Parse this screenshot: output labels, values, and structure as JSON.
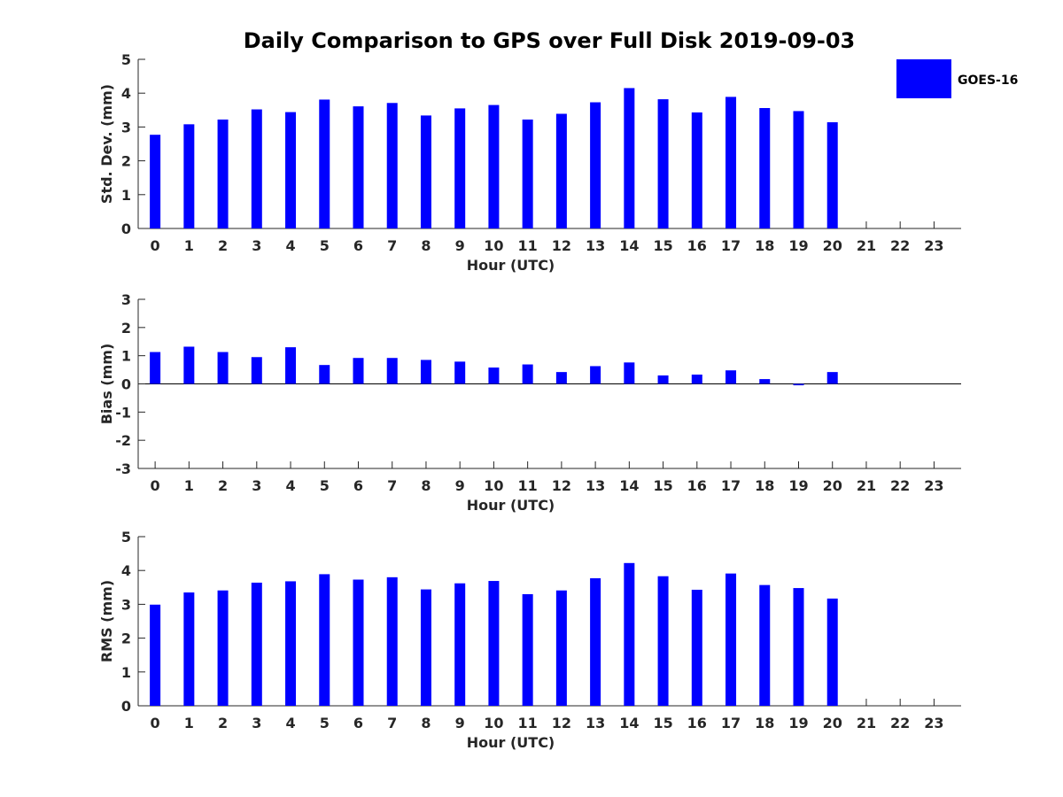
{
  "title": "Daily Comparison to GPS over Full Disk 2019-09-03",
  "legend": {
    "label": "GOES-16",
    "color": "#0000ff",
    "placement": "top-right"
  },
  "chart_data": [
    {
      "type": "bar",
      "xlabel": "Hour (UTC)",
      "ylabel": "Std. Dev. (mm)",
      "ylim": [
        0,
        5
      ],
      "yticks": [
        0,
        1,
        2,
        3,
        4,
        5
      ],
      "categories": [
        "0",
        "1",
        "2",
        "3",
        "4",
        "5",
        "6",
        "7",
        "8",
        "9",
        "10",
        "11",
        "12",
        "13",
        "14",
        "15",
        "16",
        "17",
        "18",
        "19",
        "20",
        "21",
        "22",
        "23"
      ],
      "series": [
        {
          "name": "GOES-16",
          "color": "#0000ff",
          "values": [
            2.77,
            3.08,
            3.22,
            3.52,
            3.44,
            3.81,
            3.61,
            3.71,
            3.34,
            3.55,
            3.65,
            3.22,
            3.39,
            3.73,
            4.15,
            3.82,
            3.43,
            3.89,
            3.56,
            3.47,
            3.14,
            null,
            null,
            null
          ]
        }
      ]
    },
    {
      "type": "bar",
      "xlabel": "Hour (UTC)",
      "ylabel": "Bias (mm)",
      "ylim": [
        -3,
        3
      ],
      "yticks": [
        -3,
        -2,
        -1,
        0,
        1,
        2,
        3
      ],
      "categories": [
        "0",
        "1",
        "2",
        "3",
        "4",
        "5",
        "6",
        "7",
        "8",
        "9",
        "10",
        "11",
        "12",
        "13",
        "14",
        "15",
        "16",
        "17",
        "18",
        "19",
        "20",
        "21",
        "22",
        "23"
      ],
      "series": [
        {
          "name": "GOES-16",
          "color": "#0000ff",
          "values": [
            1.13,
            1.32,
            1.13,
            0.95,
            1.3,
            0.67,
            0.92,
            0.92,
            0.85,
            0.79,
            0.58,
            0.69,
            0.42,
            0.63,
            0.76,
            0.3,
            0.33,
            0.48,
            0.17,
            -0.05,
            0.42,
            null,
            null,
            null
          ]
        }
      ]
    },
    {
      "type": "bar",
      "xlabel": "Hour (UTC)",
      "ylabel": "RMS (mm)",
      "ylim": [
        0,
        5
      ],
      "yticks": [
        0,
        1,
        2,
        3,
        4,
        5
      ],
      "categories": [
        "0",
        "1",
        "2",
        "3",
        "4",
        "5",
        "6",
        "7",
        "8",
        "9",
        "10",
        "11",
        "12",
        "13",
        "14",
        "15",
        "16",
        "17",
        "18",
        "19",
        "20",
        "21",
        "22",
        "23"
      ],
      "series": [
        {
          "name": "GOES-16",
          "color": "#0000ff",
          "values": [
            2.99,
            3.35,
            3.41,
            3.64,
            3.68,
            3.89,
            3.73,
            3.8,
            3.44,
            3.62,
            3.69,
            3.3,
            3.41,
            3.77,
            4.22,
            3.83,
            3.43,
            3.91,
            3.57,
            3.48,
            3.17,
            null,
            null,
            null
          ]
        }
      ]
    }
  ]
}
